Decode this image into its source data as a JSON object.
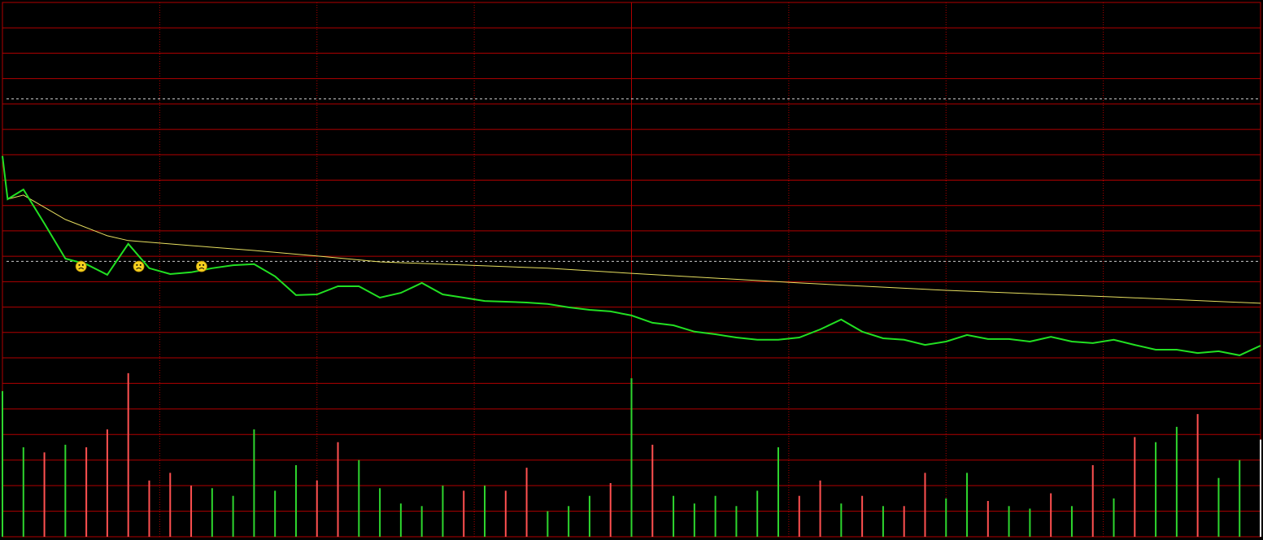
{
  "chart_data": [
    {
      "type": "line",
      "xlim": [
        0,
        240
      ],
      "xticks": [
        30,
        60,
        90,
        120,
        150,
        180,
        210
      ],
      "ylim": [
        0,
        14
      ],
      "yticks": [
        0,
        1,
        2,
        3,
        4,
        5,
        6,
        7,
        8,
        9,
        10,
        11,
        12,
        13,
        14
      ],
      "grid": true,
      "grid_color": "#b00000",
      "reference_lines": [
        10.2,
        3.8
      ],
      "reference_color": "#cccccc",
      "series": [
        {
          "color": "#22e022",
          "x": [
            0,
            1,
            4,
            8,
            12,
            16,
            20,
            24,
            28,
            32,
            36,
            40,
            44,
            48,
            52,
            56,
            60,
            64,
            68,
            72,
            76,
            80,
            84,
            88,
            92,
            96,
            100,
            104,
            108,
            112,
            116,
            120,
            124,
            128,
            132,
            136,
            140,
            144,
            148,
            152,
            156,
            160,
            164,
            168,
            172,
            176,
            180,
            184,
            188,
            192,
            196,
            200,
            204,
            208,
            212,
            216,
            220,
            224,
            228,
            232,
            236,
            240
          ],
          "values": [
            7.95,
            6.25,
            6.63,
            5.29,
            3.91,
            3.69,
            3.27,
            4.49,
            3.53,
            3.3,
            3.37,
            3.53,
            3.65,
            3.69,
            3.21,
            2.47,
            2.5,
            2.82,
            2.82,
            2.37,
            2.56,
            2.95,
            2.5,
            2.37,
            2.24,
            2.21,
            2.18,
            2.12,
            1.99,
            1.89,
            1.83,
            1.67,
            1.38,
            1.28,
            1.03,
            0.93,
            0.8,
            0.71,
            0.71,
            0.8,
            1.12,
            1.51,
            1.03,
            0.77,
            0.71,
            0.51,
            0.64,
            0.9,
            0.74,
            0.74,
            0.64,
            0.83,
            0.64,
            0.58,
            0.71,
            0.51,
            0.32,
            0.32,
            0.19,
            0.26,
            0.1,
            0.48
          ]
        },
        {
          "color": "#e8e060",
          "x": [
            1,
            4,
            12,
            20,
            24,
            36,
            48,
            60,
            72,
            104,
            120,
            152,
            180,
            212,
            240
          ],
          "values": [
            6.25,
            6.41,
            5.45,
            4.81,
            4.62,
            4.42,
            4.23,
            4.01,
            3.78,
            3.53,
            3.33,
            2.95,
            2.66,
            2.4,
            2.15
          ]
        }
      ],
      "markers": {
        "color": "#f5d020",
        "x": [
          15,
          26,
          38
        ],
        "values": [
          3.6,
          3.6,
          3.6
        ]
      }
    },
    {
      "type": "bar",
      "xlim": [
        0,
        240
      ],
      "xticks": [
        30,
        60,
        90,
        120,
        150,
        180,
        210
      ],
      "ylim": [
        0,
        7
      ],
      "yticks": [
        0,
        1,
        2,
        3,
        4,
        5,
        6,
        7
      ],
      "grid": true,
      "grid_color": "#b00000",
      "x": [
        0,
        4,
        8,
        12,
        16,
        20,
        24,
        28,
        32,
        36,
        40,
        44,
        48,
        52,
        56,
        60,
        64,
        68,
        72,
        76,
        80,
        84,
        88,
        92,
        96,
        100,
        104,
        108,
        112,
        116,
        120,
        124,
        128,
        132,
        136,
        140,
        144,
        148,
        152,
        156,
        160,
        164,
        168,
        172,
        176,
        180,
        184,
        188,
        192,
        196,
        200,
        204,
        208,
        212,
        216,
        220,
        224,
        228,
        232,
        236,
        240
      ],
      "values": [
        5.7,
        3.5,
        3.3,
        3.6,
        3.5,
        4.2,
        6.4,
        2.2,
        2.5,
        2.0,
        1.9,
        1.6,
        4.2,
        1.8,
        2.8,
        2.2,
        3.7,
        3.0,
        1.9,
        1.3,
        1.2,
        2.0,
        1.8,
        2.0,
        1.8,
        2.7,
        1.0,
        1.2,
        1.6,
        2.1,
        6.2,
        3.6,
        1.6,
        1.3,
        1.6,
        1.2,
        1.8,
        3.5,
        1.6,
        2.2,
        1.3,
        1.6,
        1.2,
        1.2,
        2.5,
        1.5,
        2.5,
        1.4,
        1.2,
        1.1,
        1.7,
        1.2,
        2.8,
        1.5,
        3.9,
        3.7,
        4.3,
        4.8,
        2.3,
        3.0,
        3.8
      ],
      "colors": [
        "#2ed62e",
        "#2ed62e",
        "#ff5050",
        "#2ed62e",
        "#ff5050",
        "#ff5050",
        "#ff5050",
        "#ff5050",
        "#ff5050",
        "#ff5050",
        "#2ed62e",
        "#2ed62e",
        "#2ed62e",
        "#2ed62e",
        "#2ed62e",
        "#ff5050",
        "#ff5050",
        "#2ed62e",
        "#2ed62e",
        "#2ed62e",
        "#2ed62e",
        "#2ed62e",
        "#ff5050",
        "#2ed62e",
        "#ff5050",
        "#ff5050",
        "#2ed62e",
        "#2ed62e",
        "#2ed62e",
        "#ff5050",
        "#2ed62e",
        "#ff5050",
        "#2ed62e",
        "#2ed62e",
        "#2ed62e",
        "#2ed62e",
        "#2ed62e",
        "#2ed62e",
        "#ff5050",
        "#ff5050",
        "#2ed62e",
        "#ff5050",
        "#2ed62e",
        "#ff5050",
        "#ff5050",
        "#2ed62e",
        "#2ed62e",
        "#ff5050",
        "#2ed62e",
        "#2ed62e",
        "#ff5050",
        "#2ed62e",
        "#ff5050",
        "#2ed62e",
        "#ff5050",
        "#2ed62e",
        "#2ed62e",
        "#ff5050",
        "#2ed62e",
        "#2ed62e",
        "#ffffff"
      ]
    }
  ]
}
